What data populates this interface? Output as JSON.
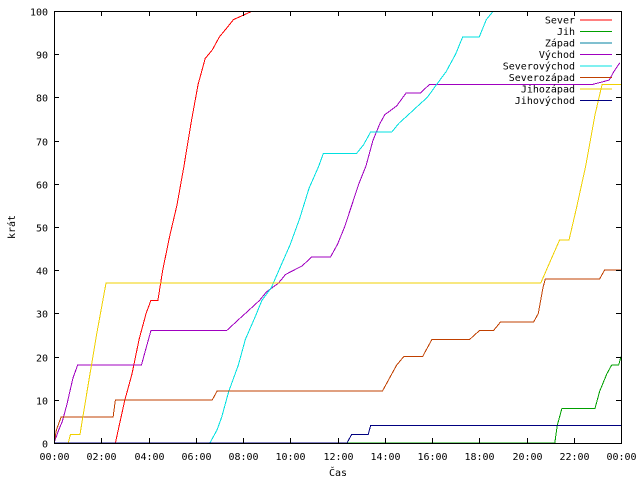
{
  "chart_data": {
    "type": "line",
    "xlabel": "Čas",
    "ylabel": "krát",
    "xlim": [
      0,
      24
    ],
    "ylim": [
      0,
      100
    ],
    "grid": false,
    "legend_position": "top-right",
    "x_ticks": [
      {
        "value": 0,
        "label": "00:00"
      },
      {
        "value": 2,
        "label": "02:00"
      },
      {
        "value": 4,
        "label": "04:00"
      },
      {
        "value": 6,
        "label": "06:00"
      },
      {
        "value": 8,
        "label": "08:00"
      },
      {
        "value": 10,
        "label": "10:00"
      },
      {
        "value": 12,
        "label": "12:00"
      },
      {
        "value": 14,
        "label": "14:00"
      },
      {
        "value": 16,
        "label": "16:00"
      },
      {
        "value": 18,
        "label": "18:00"
      },
      {
        "value": 20,
        "label": "20:00"
      },
      {
        "value": 22,
        "label": "22:00"
      },
      {
        "value": 24,
        "label": "00:00"
      }
    ],
    "y_ticks": [
      0,
      10,
      20,
      30,
      40,
      50,
      60,
      70,
      80,
      90,
      100
    ],
    "series": [
      {
        "name": "Sever",
        "color": "#ff0000",
        "points": [
          [
            0,
            0
          ],
          [
            2.6,
            0
          ],
          [
            2.8,
            5
          ],
          [
            3.0,
            10
          ],
          [
            3.3,
            16
          ],
          [
            3.6,
            24
          ],
          [
            3.9,
            30
          ],
          [
            4.1,
            33
          ],
          [
            4.4,
            33
          ],
          [
            4.6,
            40
          ],
          [
            4.9,
            48
          ],
          [
            5.2,
            55
          ],
          [
            5.5,
            64
          ],
          [
            5.8,
            74
          ],
          [
            6.1,
            83
          ],
          [
            6.4,
            89
          ],
          [
            6.7,
            91
          ],
          [
            7.0,
            94
          ],
          [
            7.3,
            96
          ],
          [
            7.6,
            98
          ],
          [
            8.0,
            99
          ],
          [
            8.4,
            100
          ]
        ]
      },
      {
        "name": "Jih",
        "color": "#00a000",
        "points": [
          [
            0,
            0
          ],
          [
            21.2,
            0
          ],
          [
            21.3,
            4
          ],
          [
            21.5,
            8
          ],
          [
            22.0,
            8
          ],
          [
            22.3,
            8
          ],
          [
            22.9,
            8
          ],
          [
            23.1,
            12
          ],
          [
            23.4,
            16
          ],
          [
            23.6,
            18
          ],
          [
            23.9,
            18
          ],
          [
            24.0,
            20
          ]
        ]
      },
      {
        "name": "Západ",
        "color": "#0080a0",
        "points": []
      },
      {
        "name": "Východ",
        "color": "#a000c0",
        "points": [
          [
            0,
            0
          ],
          [
            0.2,
            3
          ],
          [
            0.35,
            5
          ],
          [
            0.55,
            9
          ],
          [
            0.8,
            15
          ],
          [
            1.0,
            18
          ],
          [
            3.7,
            18
          ],
          [
            3.9,
            22
          ],
          [
            4.1,
            26
          ],
          [
            7.3,
            26
          ],
          [
            7.5,
            27
          ],
          [
            7.9,
            29
          ],
          [
            8.3,
            31
          ],
          [
            8.7,
            33
          ],
          [
            9.0,
            35
          ],
          [
            9.5,
            37
          ],
          [
            9.8,
            39
          ],
          [
            10.5,
            41
          ],
          [
            10.9,
            43
          ],
          [
            11.7,
            43
          ],
          [
            12.0,
            46
          ],
          [
            12.3,
            50
          ],
          [
            12.6,
            55
          ],
          [
            12.9,
            60
          ],
          [
            13.2,
            64
          ],
          [
            13.5,
            70
          ],
          [
            13.8,
            74
          ],
          [
            14.0,
            76
          ],
          [
            14.5,
            78
          ],
          [
            14.9,
            81
          ],
          [
            15.5,
            81
          ],
          [
            15.9,
            83
          ],
          [
            22.8,
            83
          ],
          [
            23.5,
            84
          ],
          [
            23.7,
            86
          ],
          [
            23.95,
            88
          ]
        ]
      },
      {
        "name": "Severovýchod",
        "color": "#00e0e0",
        "points": [
          [
            0,
            0
          ],
          [
            6.6,
            0
          ],
          [
            6.9,
            3
          ],
          [
            7.1,
            6
          ],
          [
            7.4,
            12
          ],
          [
            7.8,
            18
          ],
          [
            8.1,
            24
          ],
          [
            8.5,
            29
          ],
          [
            8.8,
            33
          ],
          [
            9.2,
            36
          ],
          [
            9.6,
            41
          ],
          [
            10.0,
            46
          ],
          [
            10.4,
            52
          ],
          [
            10.8,
            59
          ],
          [
            11.2,
            64
          ],
          [
            11.4,
            67
          ],
          [
            12.8,
            67
          ],
          [
            13.1,
            69
          ],
          [
            13.4,
            72
          ],
          [
            14.3,
            72
          ],
          [
            14.6,
            74
          ],
          [
            15.0,
            76
          ],
          [
            15.4,
            78
          ],
          [
            15.8,
            80
          ],
          [
            16.2,
            83
          ],
          [
            16.6,
            86
          ],
          [
            17.0,
            90
          ],
          [
            17.3,
            94
          ],
          [
            18.0,
            94
          ],
          [
            18.3,
            98
          ],
          [
            18.6,
            100
          ]
        ]
      },
      {
        "name": "Severozápad",
        "color": "#c04000",
        "points": [
          [
            0,
            0
          ],
          [
            0.1,
            3
          ],
          [
            0.3,
            6
          ],
          [
            2.5,
            6
          ],
          [
            2.6,
            10
          ],
          [
            6.7,
            10
          ],
          [
            6.9,
            12
          ],
          [
            13.9,
            12
          ],
          [
            14.1,
            14
          ],
          [
            14.5,
            18
          ],
          [
            14.8,
            20
          ],
          [
            15.6,
            20
          ],
          [
            16.0,
            24
          ],
          [
            17.6,
            24
          ],
          [
            18.0,
            26
          ],
          [
            18.6,
            26
          ],
          [
            18.9,
            28
          ],
          [
            20.3,
            28
          ],
          [
            20.5,
            30
          ],
          [
            20.7,
            36
          ],
          [
            20.8,
            38
          ],
          [
            23.1,
            38
          ],
          [
            23.3,
            40
          ],
          [
            24.0,
            40
          ]
        ]
      },
      {
        "name": "Jihozápad",
        "color": "#f0d000",
        "points": [
          [
            0,
            0
          ],
          [
            0.6,
            0
          ],
          [
            0.7,
            2
          ],
          [
            1.1,
            2
          ],
          [
            1.4,
            12
          ],
          [
            1.8,
            25
          ],
          [
            2.2,
            37
          ],
          [
            20.6,
            37
          ],
          [
            21.0,
            42
          ],
          [
            21.4,
            47
          ],
          [
            21.8,
            47
          ],
          [
            22.1,
            54
          ],
          [
            22.5,
            64
          ],
          [
            22.9,
            76
          ],
          [
            23.2,
            83
          ],
          [
            24.0,
            83
          ]
        ]
      },
      {
        "name": "Jihovýchod",
        "color": "#000080",
        "points": [
          [
            0,
            0
          ],
          [
            12.4,
            0
          ],
          [
            12.6,
            2
          ],
          [
            13.3,
            2
          ],
          [
            13.4,
            4
          ],
          [
            24.0,
            4
          ]
        ]
      }
    ]
  }
}
